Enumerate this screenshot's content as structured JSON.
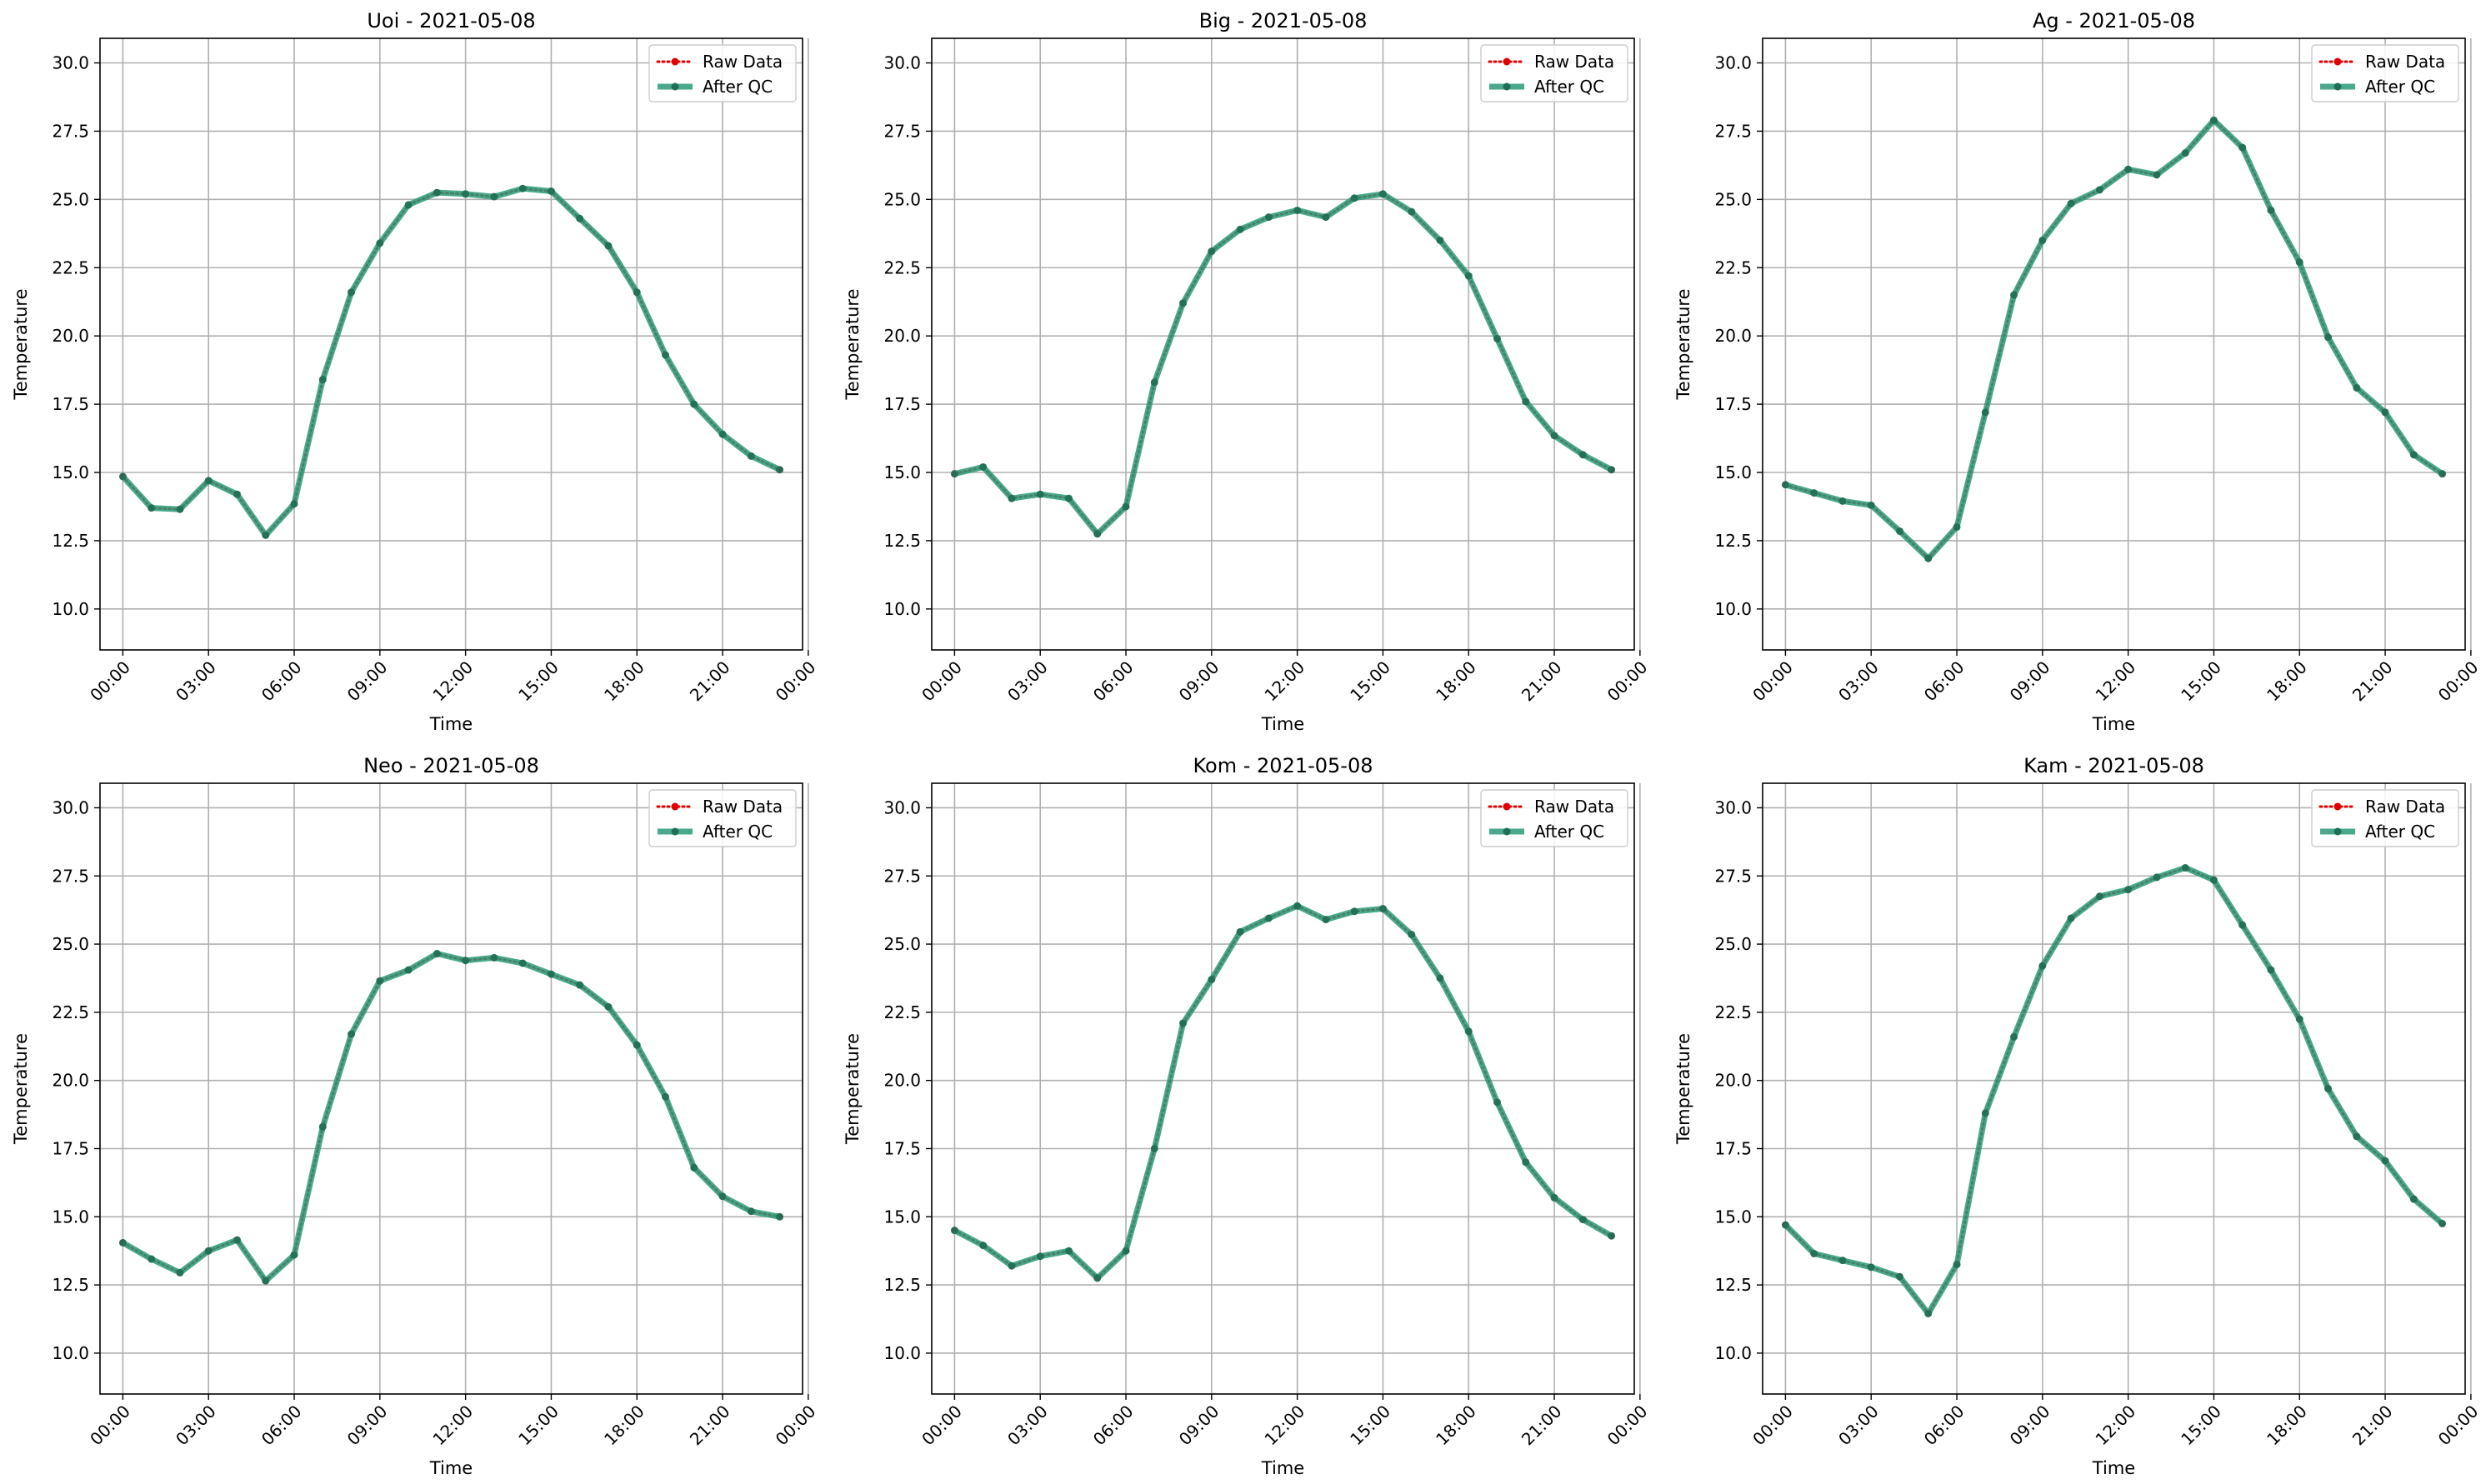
{
  "figure": {
    "legend": {
      "raw_label": "Raw Data",
      "qc_label": "After QC"
    },
    "colors": {
      "raw": "#e00000",
      "qc": "#2a9a78",
      "point": "#1f6f55",
      "grid": "#b0b0b0",
      "axis": "#000000"
    }
  },
  "chart_data": [
    {
      "type": "line",
      "title": "Uoi - 2021-05-08",
      "xlabel": "Time",
      "ylabel": "Temperature",
      "x": [
        "00:00",
        "01:00",
        "02:00",
        "03:00",
        "04:00",
        "05:00",
        "06:00",
        "07:00",
        "08:00",
        "09:00",
        "10:00",
        "11:00",
        "12:00",
        "13:00",
        "14:00",
        "15:00",
        "16:00",
        "17:00",
        "18:00",
        "19:00",
        "20:00",
        "21:00",
        "22:00",
        "23:00"
      ],
      "x_ticks": [
        "00:00",
        "03:00",
        "06:00",
        "09:00",
        "12:00",
        "15:00",
        "18:00",
        "21:00",
        "00:00"
      ],
      "ylim": [
        8.5,
        30.9
      ],
      "y_ticks": [
        "10.0",
        "12.5",
        "15.0",
        "17.5",
        "20.0",
        "22.5",
        "25.0",
        "27.5",
        "30.0"
      ],
      "grid": true,
      "legend_position": "top-right",
      "series": [
        {
          "name": "Raw Data",
          "values": [
            14.85,
            13.7,
            13.65,
            14.7,
            14.2,
            12.7,
            13.85,
            18.4,
            21.6,
            23.4,
            24.8,
            25.25,
            25.2,
            25.1,
            25.4,
            25.3,
            24.3,
            23.3,
            21.6,
            19.3,
            17.5,
            16.4,
            15.6,
            15.1
          ]
        },
        {
          "name": "After QC",
          "values": [
            14.85,
            13.7,
            13.65,
            14.7,
            14.2,
            12.7,
            13.85,
            18.4,
            21.6,
            23.4,
            24.8,
            25.25,
            25.2,
            25.1,
            25.4,
            25.3,
            24.3,
            23.3,
            21.6,
            19.3,
            17.5,
            16.4,
            15.6,
            15.1
          ]
        }
      ]
    },
    {
      "type": "line",
      "title": "Big - 2021-05-08",
      "xlabel": "Time",
      "ylabel": "Temperature",
      "x": [
        "00:00",
        "01:00",
        "02:00",
        "03:00",
        "04:00",
        "05:00",
        "06:00",
        "07:00",
        "08:00",
        "09:00",
        "10:00",
        "11:00",
        "12:00",
        "13:00",
        "14:00",
        "15:00",
        "16:00",
        "17:00",
        "18:00",
        "19:00",
        "20:00",
        "21:00",
        "22:00",
        "23:00"
      ],
      "x_ticks": [
        "00:00",
        "03:00",
        "06:00",
        "09:00",
        "12:00",
        "15:00",
        "18:00",
        "21:00",
        "00:00"
      ],
      "ylim": [
        8.5,
        30.9
      ],
      "y_ticks": [
        "10.0",
        "12.5",
        "15.0",
        "17.5",
        "20.0",
        "22.5",
        "25.0",
        "27.5",
        "30.0"
      ],
      "grid": true,
      "legend_position": "top-right",
      "series": [
        {
          "name": "Raw Data",
          "values": [
            14.95,
            15.2,
            14.05,
            14.2,
            14.05,
            12.75,
            13.75,
            18.3,
            21.2,
            23.1,
            23.9,
            24.35,
            24.6,
            24.35,
            25.05,
            25.2,
            24.55,
            23.5,
            22.2,
            19.9,
            17.6,
            16.35,
            15.65,
            15.1
          ]
        },
        {
          "name": "After QC",
          "values": [
            14.95,
            15.2,
            14.05,
            14.2,
            14.05,
            12.75,
            13.75,
            18.3,
            21.2,
            23.1,
            23.9,
            24.35,
            24.6,
            24.35,
            25.05,
            25.2,
            24.55,
            23.5,
            22.2,
            19.9,
            17.6,
            16.35,
            15.65,
            15.1
          ]
        }
      ]
    },
    {
      "type": "line",
      "title": "Ag - 2021-05-08",
      "xlabel": "Time",
      "ylabel": "Temperature",
      "x": [
        "00:00",
        "01:00",
        "02:00",
        "03:00",
        "04:00",
        "05:00",
        "06:00",
        "07:00",
        "08:00",
        "09:00",
        "10:00",
        "11:00",
        "12:00",
        "13:00",
        "14:00",
        "15:00",
        "16:00",
        "17:00",
        "18:00",
        "19:00",
        "20:00",
        "21:00",
        "22:00",
        "23:00"
      ],
      "x_ticks": [
        "00:00",
        "03:00",
        "06:00",
        "09:00",
        "12:00",
        "15:00",
        "18:00",
        "21:00",
        "00:00"
      ],
      "ylim": [
        8.5,
        30.9
      ],
      "y_ticks": [
        "10.0",
        "12.5",
        "15.0",
        "17.5",
        "20.0",
        "22.5",
        "25.0",
        "27.5",
        "30.0"
      ],
      "grid": true,
      "legend_position": "top-right",
      "series": [
        {
          "name": "Raw Data",
          "values": [
            14.55,
            14.25,
            13.95,
            13.8,
            12.85,
            11.85,
            13.0,
            17.2,
            21.5,
            23.5,
            24.85,
            25.35,
            26.1,
            25.9,
            26.7,
            27.9,
            26.9,
            24.6,
            22.7,
            19.95,
            18.1,
            17.2,
            15.65,
            14.95
          ]
        },
        {
          "name": "After QC",
          "values": [
            14.55,
            14.25,
            13.95,
            13.8,
            12.85,
            11.85,
            13.0,
            17.2,
            21.5,
            23.5,
            24.85,
            25.35,
            26.1,
            25.9,
            26.7,
            27.9,
            26.9,
            24.6,
            22.7,
            19.95,
            18.1,
            17.2,
            15.65,
            14.95
          ]
        }
      ]
    },
    {
      "type": "line",
      "title": "Neo - 2021-05-08",
      "xlabel": "Time",
      "ylabel": "Temperature",
      "x": [
        "00:00",
        "01:00",
        "02:00",
        "03:00",
        "04:00",
        "05:00",
        "06:00",
        "07:00",
        "08:00",
        "09:00",
        "10:00",
        "11:00",
        "12:00",
        "13:00",
        "14:00",
        "15:00",
        "16:00",
        "17:00",
        "18:00",
        "19:00",
        "20:00",
        "21:00",
        "22:00",
        "23:00"
      ],
      "x_ticks": [
        "00:00",
        "03:00",
        "06:00",
        "09:00",
        "12:00",
        "15:00",
        "18:00",
        "21:00",
        "00:00"
      ],
      "ylim": [
        8.5,
        30.9
      ],
      "y_ticks": [
        "10.0",
        "12.5",
        "15.0",
        "17.5",
        "20.0",
        "22.5",
        "25.0",
        "27.5",
        "30.0"
      ],
      "grid": true,
      "legend_position": "top-right",
      "series": [
        {
          "name": "Raw Data",
          "values": [
            14.05,
            13.45,
            12.95,
            13.75,
            14.15,
            12.65,
            13.6,
            18.3,
            21.7,
            23.65,
            24.05,
            24.65,
            24.4,
            24.5,
            24.3,
            23.9,
            23.5,
            22.7,
            21.3,
            19.4,
            16.8,
            15.75,
            15.2,
            15.0
          ]
        },
        {
          "name": "After QC",
          "values": [
            14.05,
            13.45,
            12.95,
            13.75,
            14.15,
            12.65,
            13.6,
            18.3,
            21.7,
            23.65,
            24.05,
            24.65,
            24.4,
            24.5,
            24.3,
            23.9,
            23.5,
            22.7,
            21.3,
            19.4,
            16.8,
            15.75,
            15.2,
            15.0
          ]
        }
      ]
    },
    {
      "type": "line",
      "title": "Kom - 2021-05-08",
      "xlabel": "Time",
      "ylabel": "Temperature",
      "x": [
        "00:00",
        "01:00",
        "02:00",
        "03:00",
        "04:00",
        "05:00",
        "06:00",
        "07:00",
        "08:00",
        "09:00",
        "10:00",
        "11:00",
        "12:00",
        "13:00",
        "14:00",
        "15:00",
        "16:00",
        "17:00",
        "18:00",
        "19:00",
        "20:00",
        "21:00",
        "22:00",
        "23:00"
      ],
      "x_ticks": [
        "00:00",
        "03:00",
        "06:00",
        "09:00",
        "12:00",
        "15:00",
        "18:00",
        "21:00",
        "00:00"
      ],
      "ylim": [
        8.5,
        30.9
      ],
      "y_ticks": [
        "10.0",
        "12.5",
        "15.0",
        "17.5",
        "20.0",
        "22.5",
        "25.0",
        "27.5",
        "30.0"
      ],
      "grid": true,
      "legend_position": "top-right",
      "series": [
        {
          "name": "Raw Data",
          "values": [
            14.5,
            13.95,
            13.2,
            13.55,
            13.75,
            12.75,
            13.75,
            17.5,
            22.1,
            23.7,
            25.45,
            25.95,
            26.4,
            25.9,
            26.2,
            26.3,
            25.35,
            23.75,
            21.8,
            19.2,
            17.0,
            15.7,
            14.9,
            14.3
          ]
        },
        {
          "name": "After QC",
          "values": [
            14.5,
            13.95,
            13.2,
            13.55,
            13.75,
            12.75,
            13.75,
            17.5,
            22.1,
            23.7,
            25.45,
            25.95,
            26.4,
            25.9,
            26.2,
            26.3,
            25.35,
            23.75,
            21.8,
            19.2,
            17.0,
            15.7,
            14.9,
            14.3
          ]
        }
      ]
    },
    {
      "type": "line",
      "title": "Kam - 2021-05-08",
      "xlabel": "Time",
      "ylabel": "Temperature",
      "x": [
        "00:00",
        "01:00",
        "02:00",
        "03:00",
        "04:00",
        "05:00",
        "06:00",
        "07:00",
        "08:00",
        "09:00",
        "10:00",
        "11:00",
        "12:00",
        "13:00",
        "14:00",
        "15:00",
        "16:00",
        "17:00",
        "18:00",
        "19:00",
        "20:00",
        "21:00",
        "22:00",
        "23:00"
      ],
      "x_ticks": [
        "00:00",
        "03:00",
        "06:00",
        "09:00",
        "12:00",
        "15:00",
        "18:00",
        "21:00",
        "00:00"
      ],
      "ylim": [
        8.5,
        30.9
      ],
      "y_ticks": [
        "10.0",
        "12.5",
        "15.0",
        "17.5",
        "20.0",
        "22.5",
        "25.0",
        "27.5",
        "30.0"
      ],
      "grid": true,
      "legend_position": "top-right",
      "series": [
        {
          "name": "Raw Data",
          "values": [
            14.7,
            13.65,
            13.4,
            13.15,
            12.8,
            11.45,
            13.25,
            18.8,
            21.6,
            24.2,
            25.95,
            26.75,
            27.0,
            27.45,
            27.8,
            27.35,
            25.7,
            24.05,
            22.25,
            19.7,
            17.95,
            17.05,
            15.65,
            14.75
          ]
        },
        {
          "name": "After QC",
          "values": [
            14.7,
            13.65,
            13.4,
            13.15,
            12.8,
            11.45,
            13.25,
            18.8,
            21.6,
            24.2,
            25.95,
            26.75,
            27.0,
            27.45,
            27.8,
            27.35,
            25.7,
            24.05,
            22.25,
            19.7,
            17.95,
            17.05,
            15.65,
            14.75
          ]
        }
      ]
    }
  ]
}
